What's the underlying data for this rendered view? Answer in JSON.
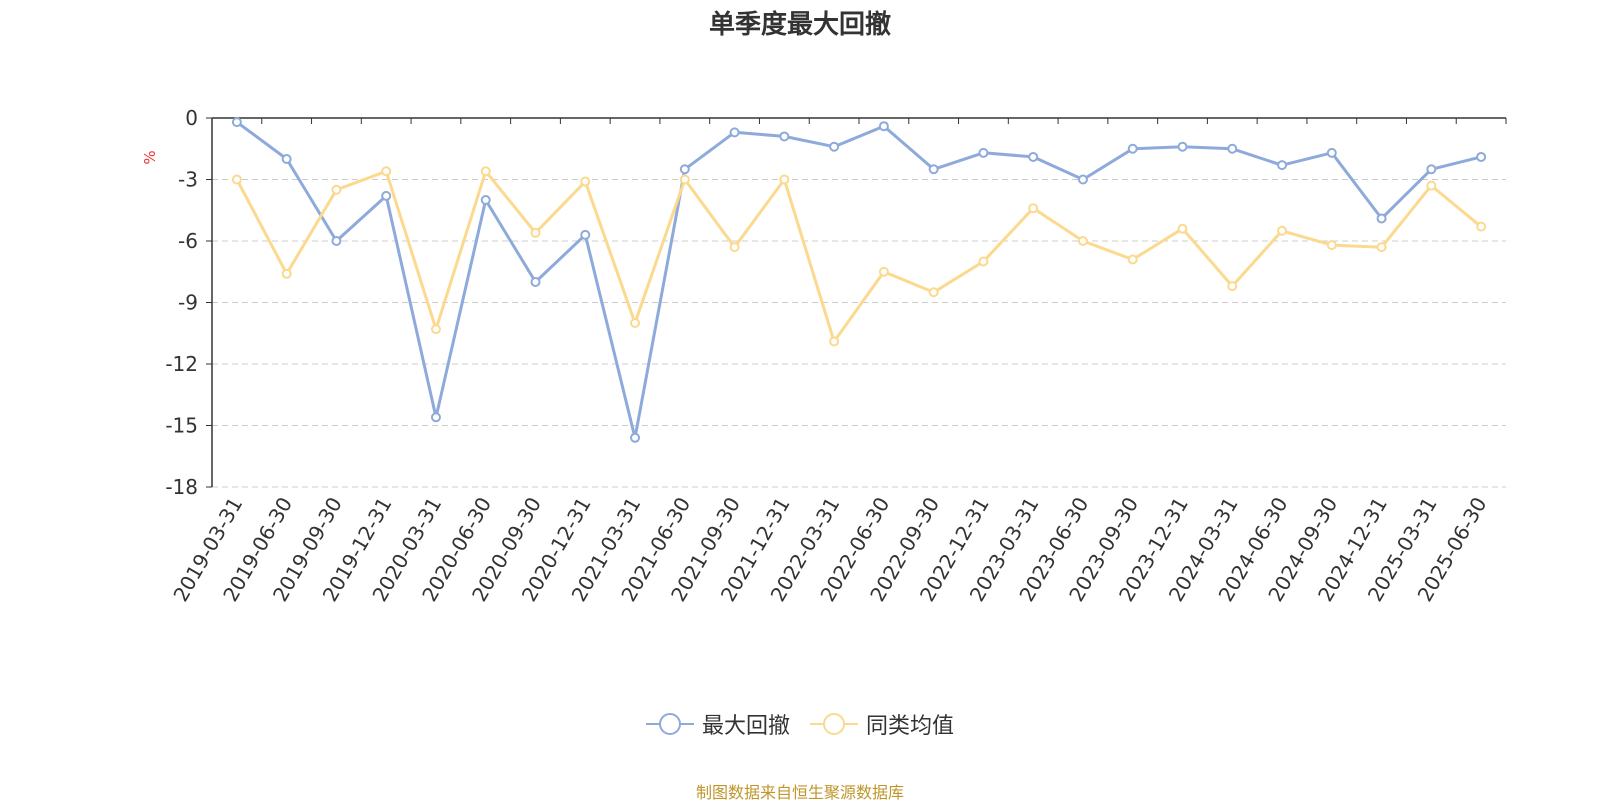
{
  "title": "单季度最大回撤",
  "source_note": "制图数据来自恒生聚源数据库",
  "chart_data": {
    "type": "line",
    "title": "单季度最大回撤",
    "ylabel": "%",
    "xlabel": "",
    "ylim": [
      -18,
      0
    ],
    "yticks": [
      0,
      -3,
      -6,
      -9,
      -12,
      -15,
      -18
    ],
    "grid": true,
    "legend_position": "bottom-center",
    "categories": [
      "2019-03-31",
      "2019-06-30",
      "2019-09-30",
      "2019-12-31",
      "2020-03-31",
      "2020-06-30",
      "2020-09-30",
      "2020-12-31",
      "2021-03-31",
      "2021-06-30",
      "2021-09-30",
      "2021-12-31",
      "2022-03-31",
      "2022-06-30",
      "2022-09-30",
      "2022-12-31",
      "2023-03-31",
      "2023-06-30",
      "2023-09-30",
      "2023-12-31",
      "2024-03-31",
      "2024-06-30",
      "2024-09-30",
      "2024-12-31",
      "2025-03-31",
      "2025-06-30"
    ],
    "series": [
      {
        "name": "最大回撤",
        "color": "#8eaadb",
        "values": [
          -0.2,
          -2.0,
          -6.0,
          -3.8,
          -14.6,
          -4.0,
          -8.0,
          -5.7,
          -15.6,
          -2.5,
          -0.7,
          -0.9,
          -1.4,
          -0.4,
          -2.5,
          -1.7,
          -1.9,
          -3.0,
          -1.5,
          -1.4,
          -1.5,
          -2.3,
          -1.7,
          -4.9,
          -2.5,
          -1.9
        ]
      },
      {
        "name": "同类均值",
        "color": "#fbd98e",
        "values": [
          -3.0,
          -7.6,
          -3.5,
          -2.6,
          -10.3,
          -2.6,
          -5.6,
          -3.1,
          -10.0,
          -3.0,
          -6.3,
          -3.0,
          -10.9,
          -7.5,
          -8.5,
          -7.0,
          -4.4,
          -6.0,
          -6.9,
          -5.4,
          -8.2,
          -5.5,
          -6.2,
          -6.3,
          -3.3,
          -5.3
        ]
      }
    ]
  }
}
